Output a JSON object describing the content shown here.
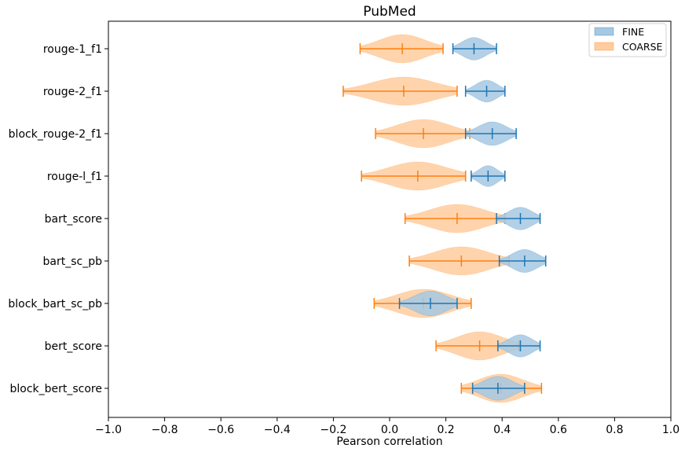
{
  "chart_data": {
    "type": "violin",
    "title": "PubMed",
    "xlabel": "Pearson correlation",
    "ylabel": "",
    "xlim": [
      -1.0,
      1.0
    ],
    "xticks": [
      -1.0,
      -0.8,
      -0.6,
      -0.4,
      -0.2,
      0.0,
      0.2,
      0.4,
      0.6,
      0.8,
      1.0
    ],
    "xtick_labels": [
      "−1.0",
      "−0.8",
      "−0.6",
      "−0.4",
      "−0.2",
      "0.0",
      "0.2",
      "0.4",
      "0.6",
      "0.8",
      "1.0"
    ],
    "legend_position": "top-right",
    "grid": false,
    "categories": [
      "rouge-1_f1",
      "rouge-2_f1",
      "block_rouge-2_f1",
      "rouge-l_f1",
      "bart_score",
      "bart_sc_pb",
      "block_bart_sc_pb",
      "bert_score",
      "block_bert_score"
    ],
    "series": [
      {
        "name": "FINE",
        "color": "#1f77b4",
        "fill_color": "#a6c8e3",
        "stats": [
          {
            "min": 0.225,
            "mean": 0.3,
            "max": 0.38
          },
          {
            "min": 0.27,
            "mean": 0.345,
            "max": 0.41
          },
          {
            "min": 0.27,
            "mean": 0.365,
            "max": 0.45
          },
          {
            "min": 0.29,
            "mean": 0.35,
            "max": 0.41
          },
          {
            "min": 0.38,
            "mean": 0.465,
            "max": 0.535
          },
          {
            "min": 0.39,
            "mean": 0.48,
            "max": 0.555
          },
          {
            "min": 0.035,
            "mean": 0.145,
            "max": 0.24
          },
          {
            "min": 0.385,
            "mean": 0.465,
            "max": 0.535
          },
          {
            "min": 0.295,
            "mean": 0.385,
            "max": 0.48
          }
        ]
      },
      {
        "name": "COARSE",
        "color": "#ff7f0e",
        "fill_color": "#ffcc9f",
        "stats": [
          {
            "min": -0.105,
            "mean": 0.045,
            "max": 0.19
          },
          {
            "min": -0.165,
            "mean": 0.05,
            "max": 0.24
          },
          {
            "min": -0.05,
            "mean": 0.12,
            "max": 0.285
          },
          {
            "min": -0.1,
            "mean": 0.1,
            "max": 0.27
          },
          {
            "min": 0.055,
            "mean": 0.24,
            "max": 0.41
          },
          {
            "min": 0.07,
            "mean": 0.255,
            "max": 0.425
          },
          {
            "min": -0.055,
            "mean": 0.12,
            "max": 0.29
          },
          {
            "min": 0.165,
            "mean": 0.32,
            "max": 0.46
          },
          {
            "min": 0.255,
            "mean": 0.395,
            "max": 0.54
          }
        ]
      }
    ]
  }
}
